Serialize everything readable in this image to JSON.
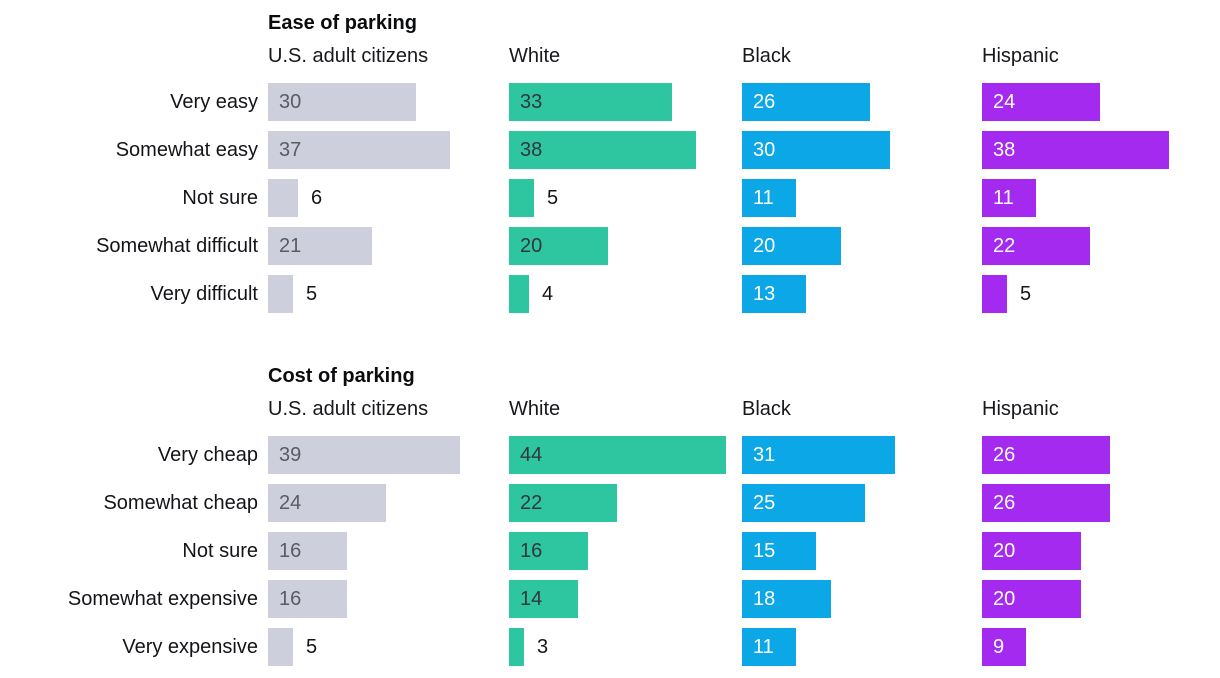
{
  "chart_data": [
    {
      "type": "bar",
      "orientation": "horizontal",
      "title": "Ease of parking",
      "categories": [
        "Very easy",
        "Somewhat easy",
        "Not sure",
        "Somewhat difficult",
        "Very difficult"
      ],
      "series": [
        {
          "name": "U.S. adult citizens",
          "color": "#cdd0dc",
          "value_text_color": "#595c63",
          "values": [
            30,
            37,
            6,
            21,
            5
          ]
        },
        {
          "name": "White",
          "color": "#2ec5a1",
          "value_text_color": "#33373c",
          "values": [
            33,
            38,
            5,
            20,
            4
          ]
        },
        {
          "name": "Black",
          "color": "#0ba7e6",
          "value_text_color": "#ffffff",
          "values": [
            26,
            30,
            11,
            20,
            13
          ]
        },
        {
          "name": "Hispanic",
          "color": "#a52af0",
          "value_text_color": "#ffffff",
          "values": [
            24,
            38,
            11,
            22,
            5
          ]
        }
      ],
      "outside_value_text_color": "#15161a",
      "value_labels": "inside-bar-or-right-of-bar",
      "legend_position": "column-headers-above-each-series",
      "grid": false,
      "axes": "none",
      "xlim": [
        0,
        48
      ]
    },
    {
      "type": "bar",
      "orientation": "horizontal",
      "title": "Cost of parking",
      "categories": [
        "Very cheap",
        "Somewhat cheap",
        "Not sure",
        "Somewhat expensive",
        "Very expensive"
      ],
      "series": [
        {
          "name": "U.S. adult citizens",
          "color": "#cdd0dc",
          "value_text_color": "#595c63",
          "values": [
            39,
            24,
            16,
            16,
            5
          ]
        },
        {
          "name": "White",
          "color": "#2ec5a1",
          "value_text_color": "#33373c",
          "values": [
            44,
            22,
            16,
            14,
            3
          ]
        },
        {
          "name": "Black",
          "color": "#0ba7e6",
          "value_text_color": "#ffffff",
          "values": [
            31,
            25,
            15,
            18,
            11
          ]
        },
        {
          "name": "Hispanic",
          "color": "#a52af0",
          "value_text_color": "#ffffff",
          "values": [
            26,
            26,
            20,
            20,
            9
          ]
        }
      ],
      "outside_value_text_color": "#15161a",
      "value_labels": "inside-bar-or-right-of-bar",
      "legend_position": "column-headers-above-each-series",
      "grid": false,
      "axes": "none",
      "xlim": [
        0,
        48
      ]
    }
  ]
}
